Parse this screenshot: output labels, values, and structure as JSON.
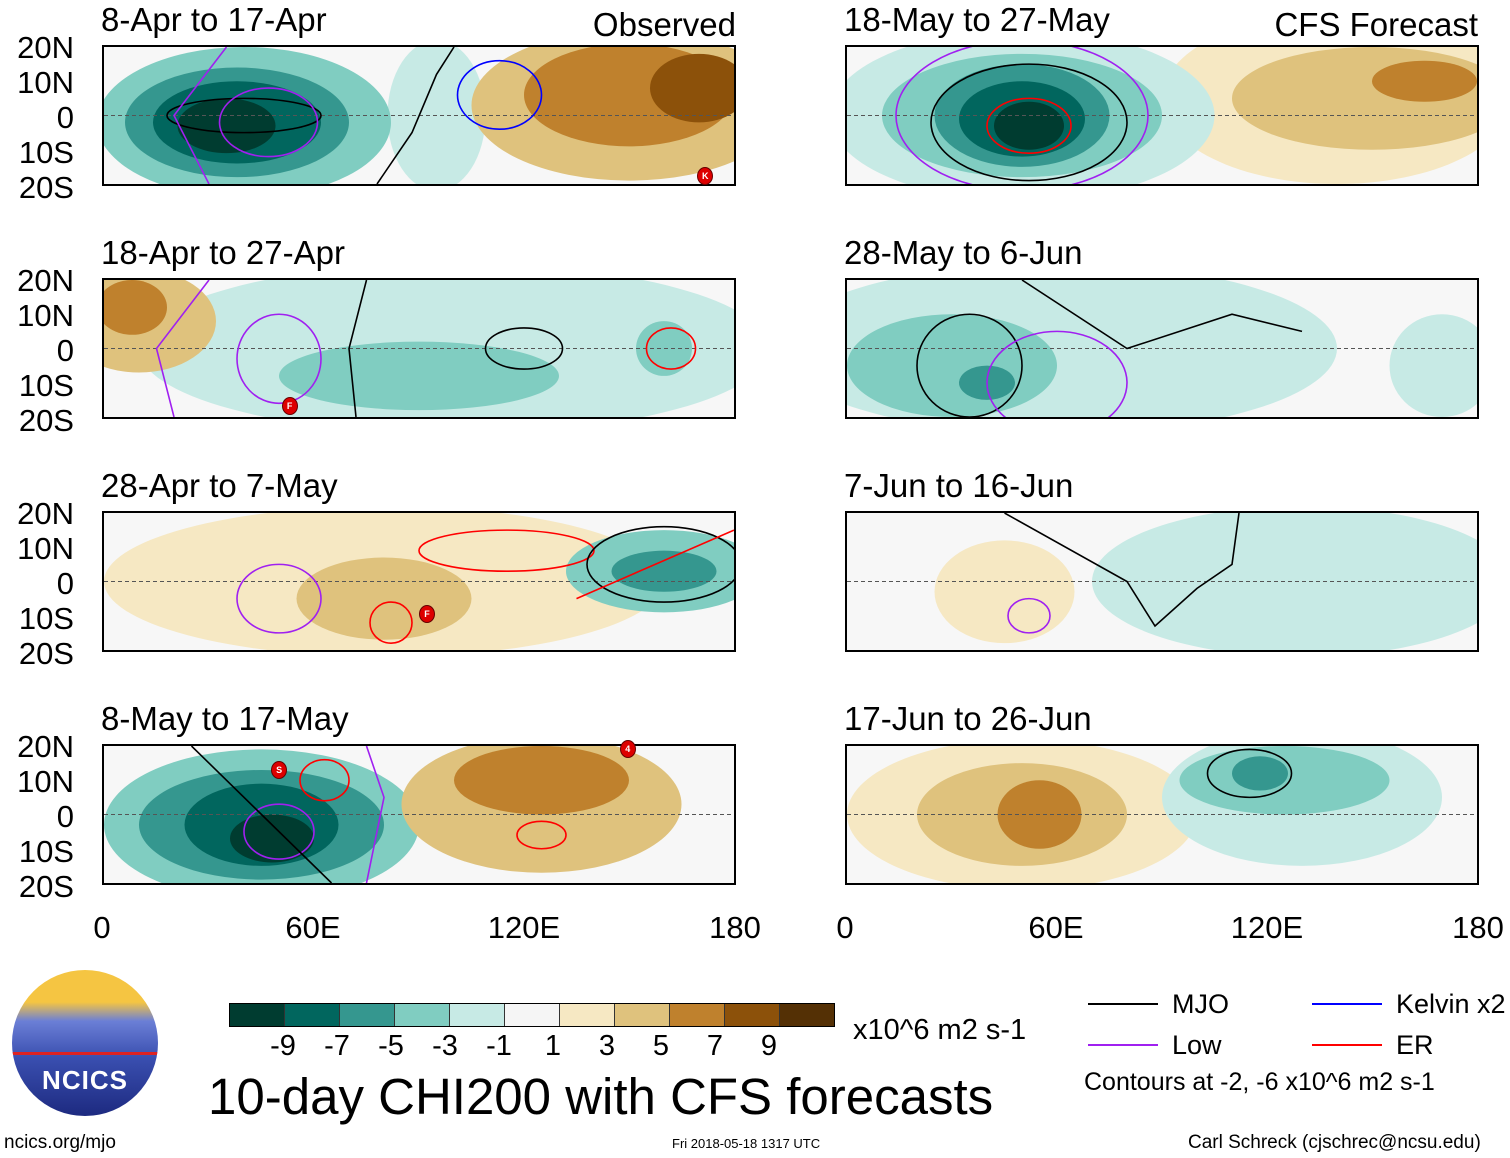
{
  "colorbar": {
    "levels": [
      "-9",
      "-7",
      "-5",
      "-3",
      "-1",
      "1",
      "3",
      "5",
      "7",
      "9"
    ],
    "colors": [
      "#003c30",
      "#01665e",
      "#35978f",
      "#80cdc1",
      "#c7eae5",
      "#f5f5f5",
      "#f6e8c3",
      "#dfc27d",
      "#bf812d",
      "#8c510a",
      "#543005"
    ],
    "units": "x10^6 m2 s-1"
  },
  "main_title": "10-day CHI200 with CFS forecasts",
  "y_ticks": [
    "20N",
    "10N",
    "0",
    "10S",
    "20S"
  ],
  "x_ticks": [
    "0",
    "60E",
    "120E",
    "180"
  ],
  "column_labels": {
    "left": "Observed",
    "right": "CFS Forecast"
  },
  "legend": {
    "items": [
      {
        "label": "MJO",
        "color": "#000000"
      },
      {
        "label": "Kelvin x2",
        "color": "#0000ff"
      },
      {
        "label": "Low",
        "color": "#a020f0"
      },
      {
        "label": "ER",
        "color": "#ff0000"
      }
    ],
    "note": "Contours at -2, -6 x10^6 m2 s-1"
  },
  "logo_text": "NCICS",
  "footer": {
    "url": "ncics.org/mjo",
    "timestamp": "Fri 2018-05-18 1317 UTC",
    "author": "Carl Schreck (cjschrec@ncsu.edu)"
  },
  "chart_data": {
    "type": "heatmap",
    "lon_range": [
      0,
      180
    ],
    "lat_range": [
      -20,
      20
    ],
    "panels": [
      {
        "title": "8-Apr to 17-Apr",
        "blobs": [
          [
            95,
            0,
            14,
            22,
            -1
          ],
          [
            40,
            -2,
            42,
            22,
            -3
          ],
          [
            38,
            -2,
            32,
            16,
            -5
          ],
          [
            38,
            -2,
            24,
            12,
            -7
          ],
          [
            35,
            -3,
            14,
            8,
            -9
          ],
          [
            150,
            3,
            45,
            22,
            3
          ],
          [
            150,
            6,
            30,
            15,
            5
          ],
          [
            170,
            8,
            14,
            10,
            7
          ]
        ],
        "contours": [
          [
            "e",
            40,
            0,
            22,
            5,
            "#000"
          ],
          [
            "e",
            47,
            -2,
            14,
            10,
            "#a020f0"
          ],
          [
            "e",
            113,
            6,
            12,
            10,
            "#0000ff"
          ],
          [
            "l",
            [
              [
                78,
                -20
              ],
              [
                88,
                -5
              ],
              [
                95,
                12
              ],
              [
                100,
                20
              ]
            ],
            "#000"
          ],
          [
            "l",
            [
              [
                30,
                -20
              ],
              [
                20,
                0
              ],
              [
                35,
                20
              ]
            ],
            "#a020f0"
          ]
        ],
        "storms": [
          [
            "K",
            171,
            -17
          ]
        ]
      },
      {
        "title": "18-Apr to 27-Apr",
        "blobs": [
          [
            100,
            0,
            90,
            25,
            -1
          ],
          [
            10,
            8,
            22,
            15,
            3
          ],
          [
            8,
            12,
            10,
            8,
            5
          ],
          [
            90,
            -8,
            40,
            10,
            -3
          ],
          [
            160,
            0,
            8,
            8,
            -3
          ]
        ],
        "contours": [
          [
            "e",
            120,
            0,
            11,
            6,
            "#000"
          ],
          [
            "e",
            50,
            -3,
            12,
            13,
            "#a020f0"
          ],
          [
            "e",
            162,
            0,
            7,
            6,
            "#ff0000"
          ],
          [
            "l",
            [
              [
                75,
                20
              ],
              [
                70,
                0
              ],
              [
                72,
                -20
              ]
            ],
            "#000"
          ],
          [
            "l",
            [
              [
                30,
                20
              ],
              [
                15,
                0
              ],
              [
                20,
                -20
              ]
            ],
            "#a020f0"
          ]
        ],
        "storms": [
          [
            "F",
            53,
            -16
          ]
        ]
      },
      {
        "title": "28-Apr to 7-May",
        "blobs": [
          [
            80,
            0,
            80,
            22,
            1
          ],
          [
            80,
            -5,
            25,
            12,
            3
          ],
          [
            160,
            3,
            28,
            12,
            -3
          ],
          [
            160,
            3,
            15,
            6,
            -5
          ]
        ],
        "contours": [
          [
            "e",
            115,
            9,
            25,
            6,
            "#ff0000"
          ],
          [
            "e",
            82,
            -12,
            6,
            6,
            "#ff0000"
          ],
          [
            "e",
            160,
            5,
            22,
            11,
            "#000"
          ],
          [
            "e",
            50,
            -5,
            12,
            10,
            "#a020f0"
          ],
          [
            "l",
            [
              [
                135,
                -5
              ],
              [
                180,
                15
              ]
            ],
            "#ff0000"
          ]
        ],
        "storms": [
          [
            "F",
            92,
            -9
          ]
        ]
      },
      {
        "title": "8-May to 17-May",
        "blobs": [
          [
            45,
            -3,
            45,
            22,
            -3
          ],
          [
            45,
            -3,
            35,
            16,
            -5
          ],
          [
            45,
            -3,
            22,
            12,
            -7
          ],
          [
            48,
            -7,
            12,
            7,
            -9
          ],
          [
            125,
            3,
            40,
            20,
            3
          ],
          [
            125,
            10,
            25,
            10,
            5
          ]
        ],
        "contours": [
          [
            "e",
            50,
            -5,
            10,
            8,
            "#a020f0"
          ],
          [
            "e",
            63,
            10,
            7,
            6,
            "#ff0000"
          ],
          [
            "e",
            125,
            -6,
            7,
            4,
            "#ff0000"
          ],
          [
            "l",
            [
              [
                25,
                20
              ],
              [
                45,
                0
              ],
              [
                65,
                -20
              ]
            ],
            "#000"
          ],
          [
            "l",
            [
              [
                75,
                20
              ],
              [
                80,
                5
              ],
              [
                75,
                -20
              ]
            ],
            "#a020f0"
          ]
        ],
        "storms": [
          [
            "S",
            50,
            13
          ],
          [
            "4",
            149,
            19
          ]
        ]
      },
      {
        "title": "18-May to 27-May",
        "blobs": [
          [
            140,
            5,
            50,
            25,
            1
          ],
          [
            150,
            5,
            40,
            15,
            3
          ],
          [
            165,
            10,
            15,
            6,
            5
          ],
          [
            50,
            0,
            55,
            25,
            -1
          ],
          [
            50,
            0,
            40,
            18,
            -3
          ],
          [
            50,
            0,
            25,
            15,
            -5
          ],
          [
            50,
            -1,
            18,
            11,
            -7
          ],
          [
            52,
            -3,
            10,
            7,
            -9
          ]
        ],
        "contours": [
          [
            "e",
            52,
            -2,
            28,
            17,
            "#000"
          ],
          [
            "e",
            52,
            -3,
            12,
            8,
            "#ff0000"
          ],
          [
            "e",
            50,
            0,
            36,
            22,
            "#a020f0"
          ]
        ],
        "storms": []
      },
      {
        "title": "28-May to 6-Jun",
        "blobs": [
          [
            60,
            0,
            80,
            25,
            -1
          ],
          [
            30,
            -5,
            30,
            15,
            -3
          ],
          [
            170,
            -5,
            15,
            15,
            -1
          ],
          [
            40,
            -10,
            8,
            5,
            -5
          ]
        ],
        "contours": [
          [
            "e",
            35,
            -5,
            15,
            15,
            "#000"
          ],
          [
            "e",
            60,
            -10,
            20,
            15,
            "#a020f0"
          ],
          [
            "l",
            [
              [
                50,
                20
              ],
              [
                80,
                0
              ],
              [
                110,
                10
              ],
              [
                130,
                5
              ]
            ],
            "#000"
          ]
        ],
        "storms": []
      },
      {
        "title": "7-Jun to 16-Jun",
        "blobs": [
          [
            130,
            0,
            60,
            22,
            -1
          ],
          [
            45,
            -3,
            20,
            15,
            1
          ]
        ],
        "contours": [
          [
            "e",
            52,
            -10,
            6,
            5,
            "#a020f0"
          ],
          [
            "l",
            [
              [
                45,
                20
              ],
              [
                80,
                0
              ],
              [
                88,
                -13
              ],
              [
                100,
                -2
              ],
              [
                110,
                5
              ],
              [
                112,
                20
              ]
            ],
            "#000"
          ]
        ],
        "storms": []
      },
      {
        "title": "17-Jun to 26-Jun",
        "blobs": [
          [
            50,
            0,
            50,
            22,
            1
          ],
          [
            50,
            0,
            30,
            15,
            3
          ],
          [
            55,
            0,
            12,
            10,
            5
          ],
          [
            130,
            5,
            40,
            20,
            -1
          ],
          [
            125,
            10,
            30,
            10,
            -3
          ],
          [
            118,
            12,
            8,
            5,
            -5
          ]
        ],
        "contours": [
          [
            "e",
            115,
            12,
            12,
            7,
            "#000"
          ]
        ],
        "storms": []
      }
    ]
  }
}
